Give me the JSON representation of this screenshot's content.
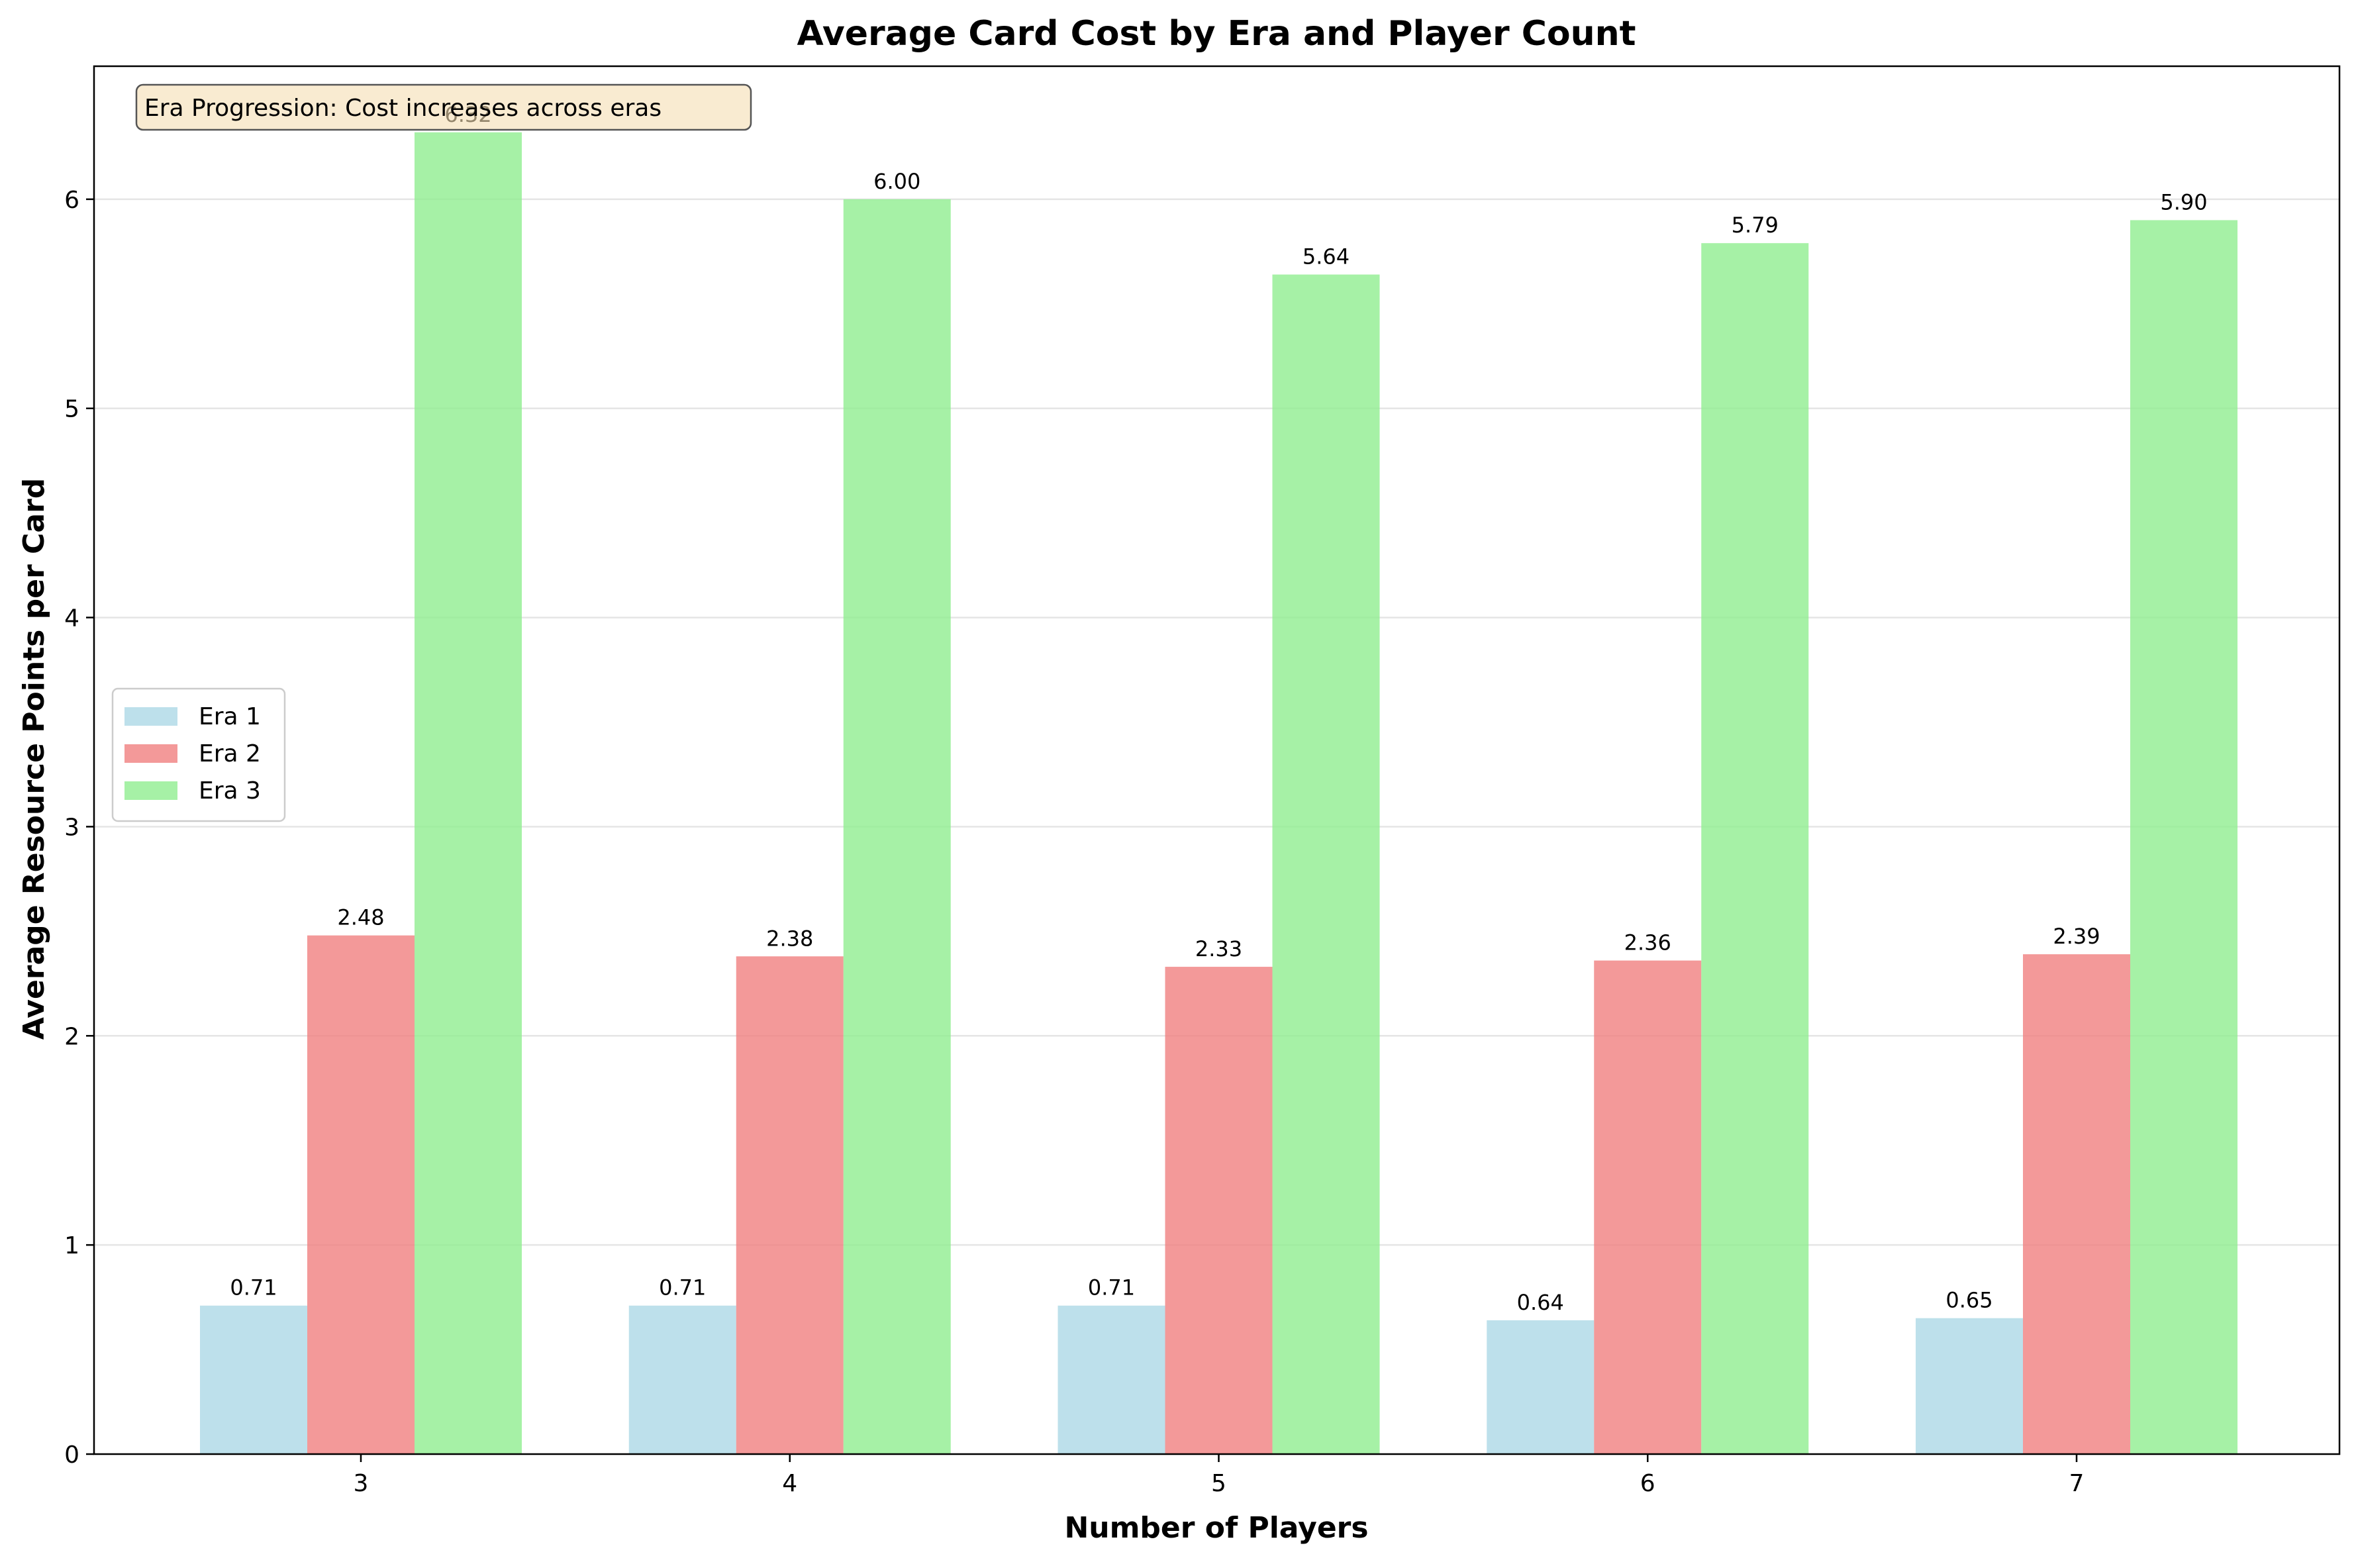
{
  "chart_data": {
    "type": "bar",
    "title": "Average Card Cost by Era and Player Count",
    "xlabel": "Number of Players",
    "ylabel": "Average Resource Points per Card",
    "categories": [
      "3",
      "4",
      "5",
      "6",
      "7"
    ],
    "series": [
      {
        "name": "Era 1",
        "color": "#add8e6",
        "values": [
          0.71,
          0.71,
          0.71,
          0.64,
          0.65
        ],
        "labels": [
          "0.71",
          "0.71",
          "0.71",
          "0.64",
          "0.65"
        ]
      },
      {
        "name": "Era 2",
        "color": "#f08080",
        "values": [
          2.48,
          2.38,
          2.33,
          2.36,
          2.39
        ],
        "labels": [
          "2.48",
          "2.38",
          "2.33",
          "2.36",
          "2.39"
        ]
      },
      {
        "name": "Era 3",
        "color": "#90ee90",
        "values": [
          6.32,
          6.0,
          5.64,
          5.79,
          5.9
        ],
        "labels": [
          "6.32",
          "6.00",
          "5.64",
          "5.79",
          "5.90"
        ]
      }
    ],
    "ylim": [
      0,
      6.636
    ],
    "yticks": [
      0,
      1,
      2,
      3,
      4,
      5,
      6
    ],
    "grid": "y",
    "legend": "center-left",
    "annotation": "Era Progression: Cost increases across eras"
  }
}
